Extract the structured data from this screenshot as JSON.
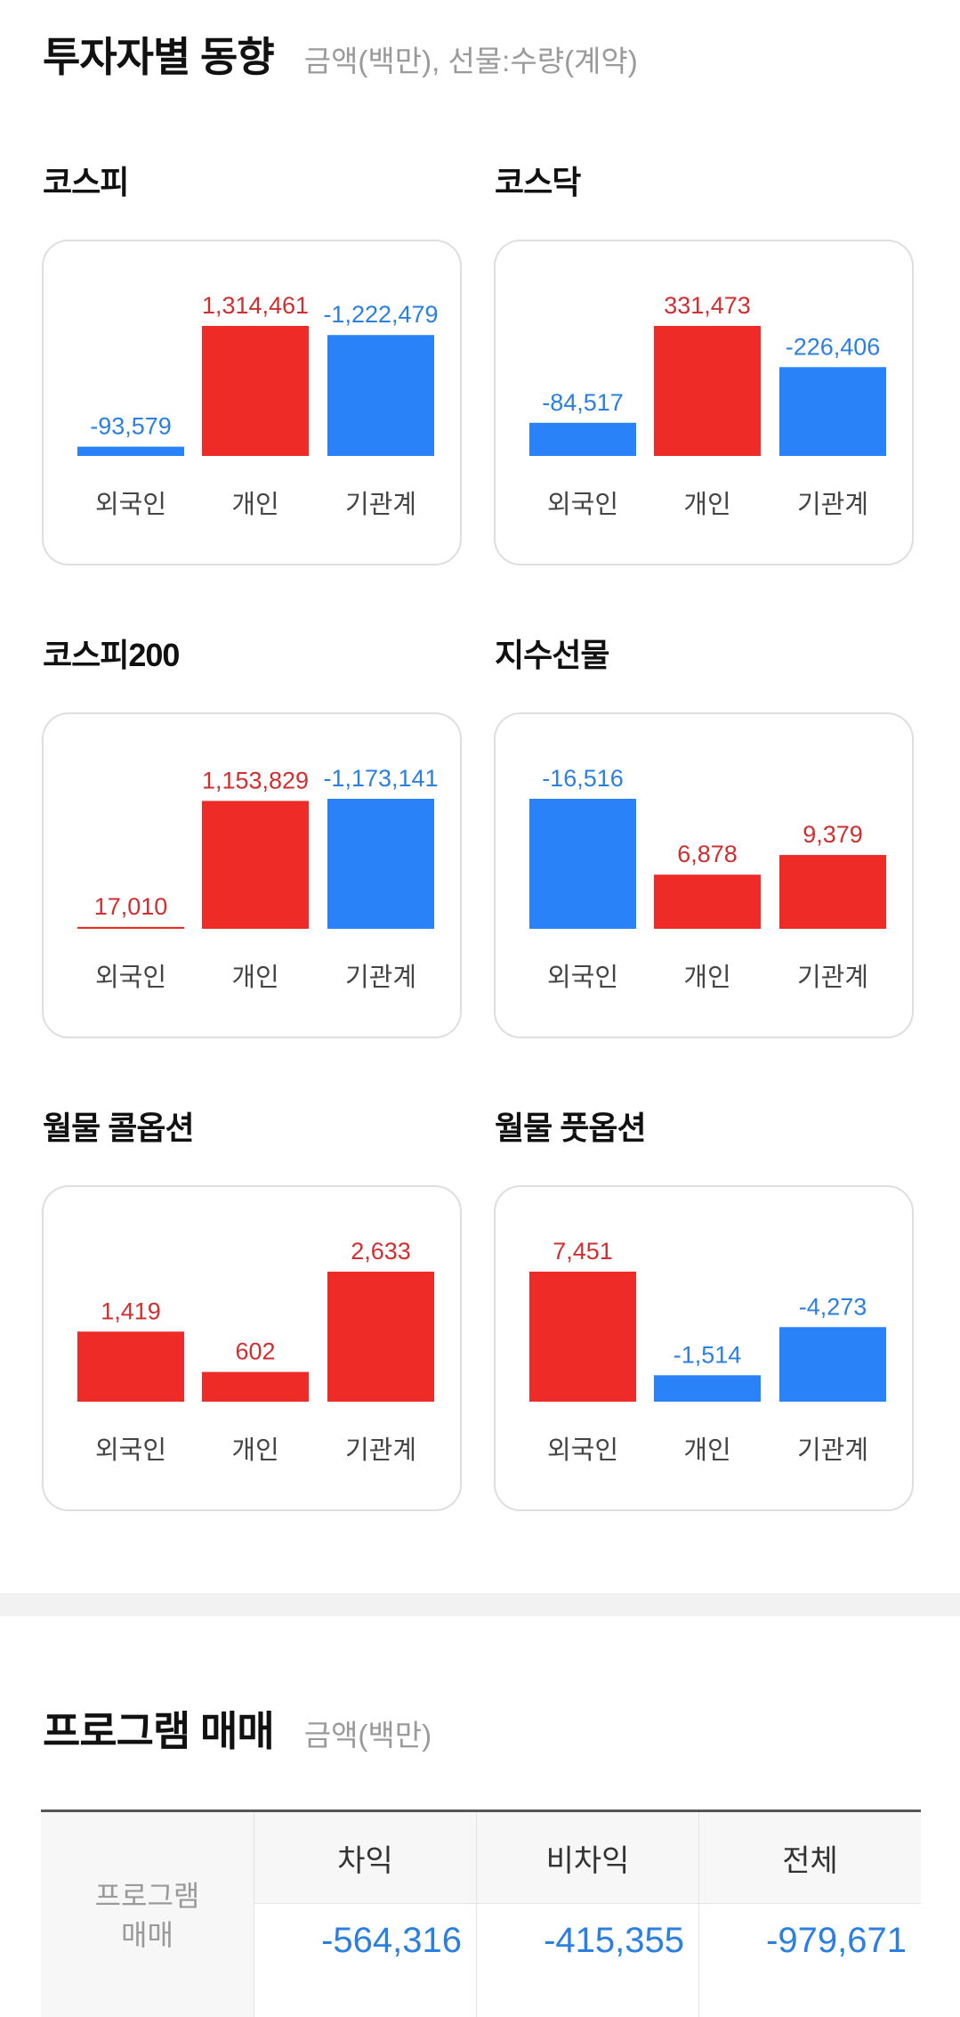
{
  "investor_trend": {
    "title": "투자자별 동향",
    "subtitle": "금액(백만), 선물:수량(계약)"
  },
  "colors": {
    "positive": "#ee2b27",
    "negative": "#2a82f9",
    "positive_text": "#cf2f2f",
    "negative_text": "#2b7fe0"
  },
  "chart_data": [
    {
      "type": "bar",
      "title": "코스피",
      "categories": [
        "외국인",
        "개인",
        "기관계"
      ],
      "values": [
        -93579,
        1314461,
        -1222479
      ],
      "labels": [
        "-93,579",
        "1,314,461",
        "-1,222,479"
      ]
    },
    {
      "type": "bar",
      "title": "코스닥",
      "categories": [
        "외국인",
        "개인",
        "기관계"
      ],
      "values": [
        -84517,
        331473,
        -226406
      ],
      "labels": [
        "-84,517",
        "331,473",
        "-226,406"
      ]
    },
    {
      "type": "bar",
      "title": "코스피200",
      "categories": [
        "외국인",
        "개인",
        "기관계"
      ],
      "values": [
        17010,
        1153829,
        -1173141
      ],
      "labels": [
        "17,010",
        "1,153,829",
        "-1,173,141"
      ]
    },
    {
      "type": "bar",
      "title": "지수선물",
      "categories": [
        "외국인",
        "개인",
        "기관계"
      ],
      "values": [
        -16516,
        6878,
        9379
      ],
      "labels": [
        "-16,516",
        "6,878",
        "9,379"
      ]
    },
    {
      "type": "bar",
      "title": "월물 콜옵션",
      "categories": [
        "외국인",
        "개인",
        "기관계"
      ],
      "values": [
        1419,
        602,
        2633
      ],
      "labels": [
        "1,419",
        "602",
        "2,633"
      ]
    },
    {
      "type": "bar",
      "title": "월물 풋옵션",
      "categories": [
        "외국인",
        "개인",
        "기관계"
      ],
      "values": [
        7451,
        -1514,
        -4273
      ],
      "labels": [
        "7,451",
        "-1,514",
        "-4,273"
      ]
    }
  ],
  "program_trading": {
    "title": "프로그램 매매",
    "subtitle": "금액(백만)",
    "row_header_line1": "프로그램",
    "row_header_line2": "매매",
    "columns": [
      "차익",
      "비차익",
      "전체"
    ],
    "values": [
      "-564,316",
      "-415,355",
      "-979,671"
    ]
  }
}
